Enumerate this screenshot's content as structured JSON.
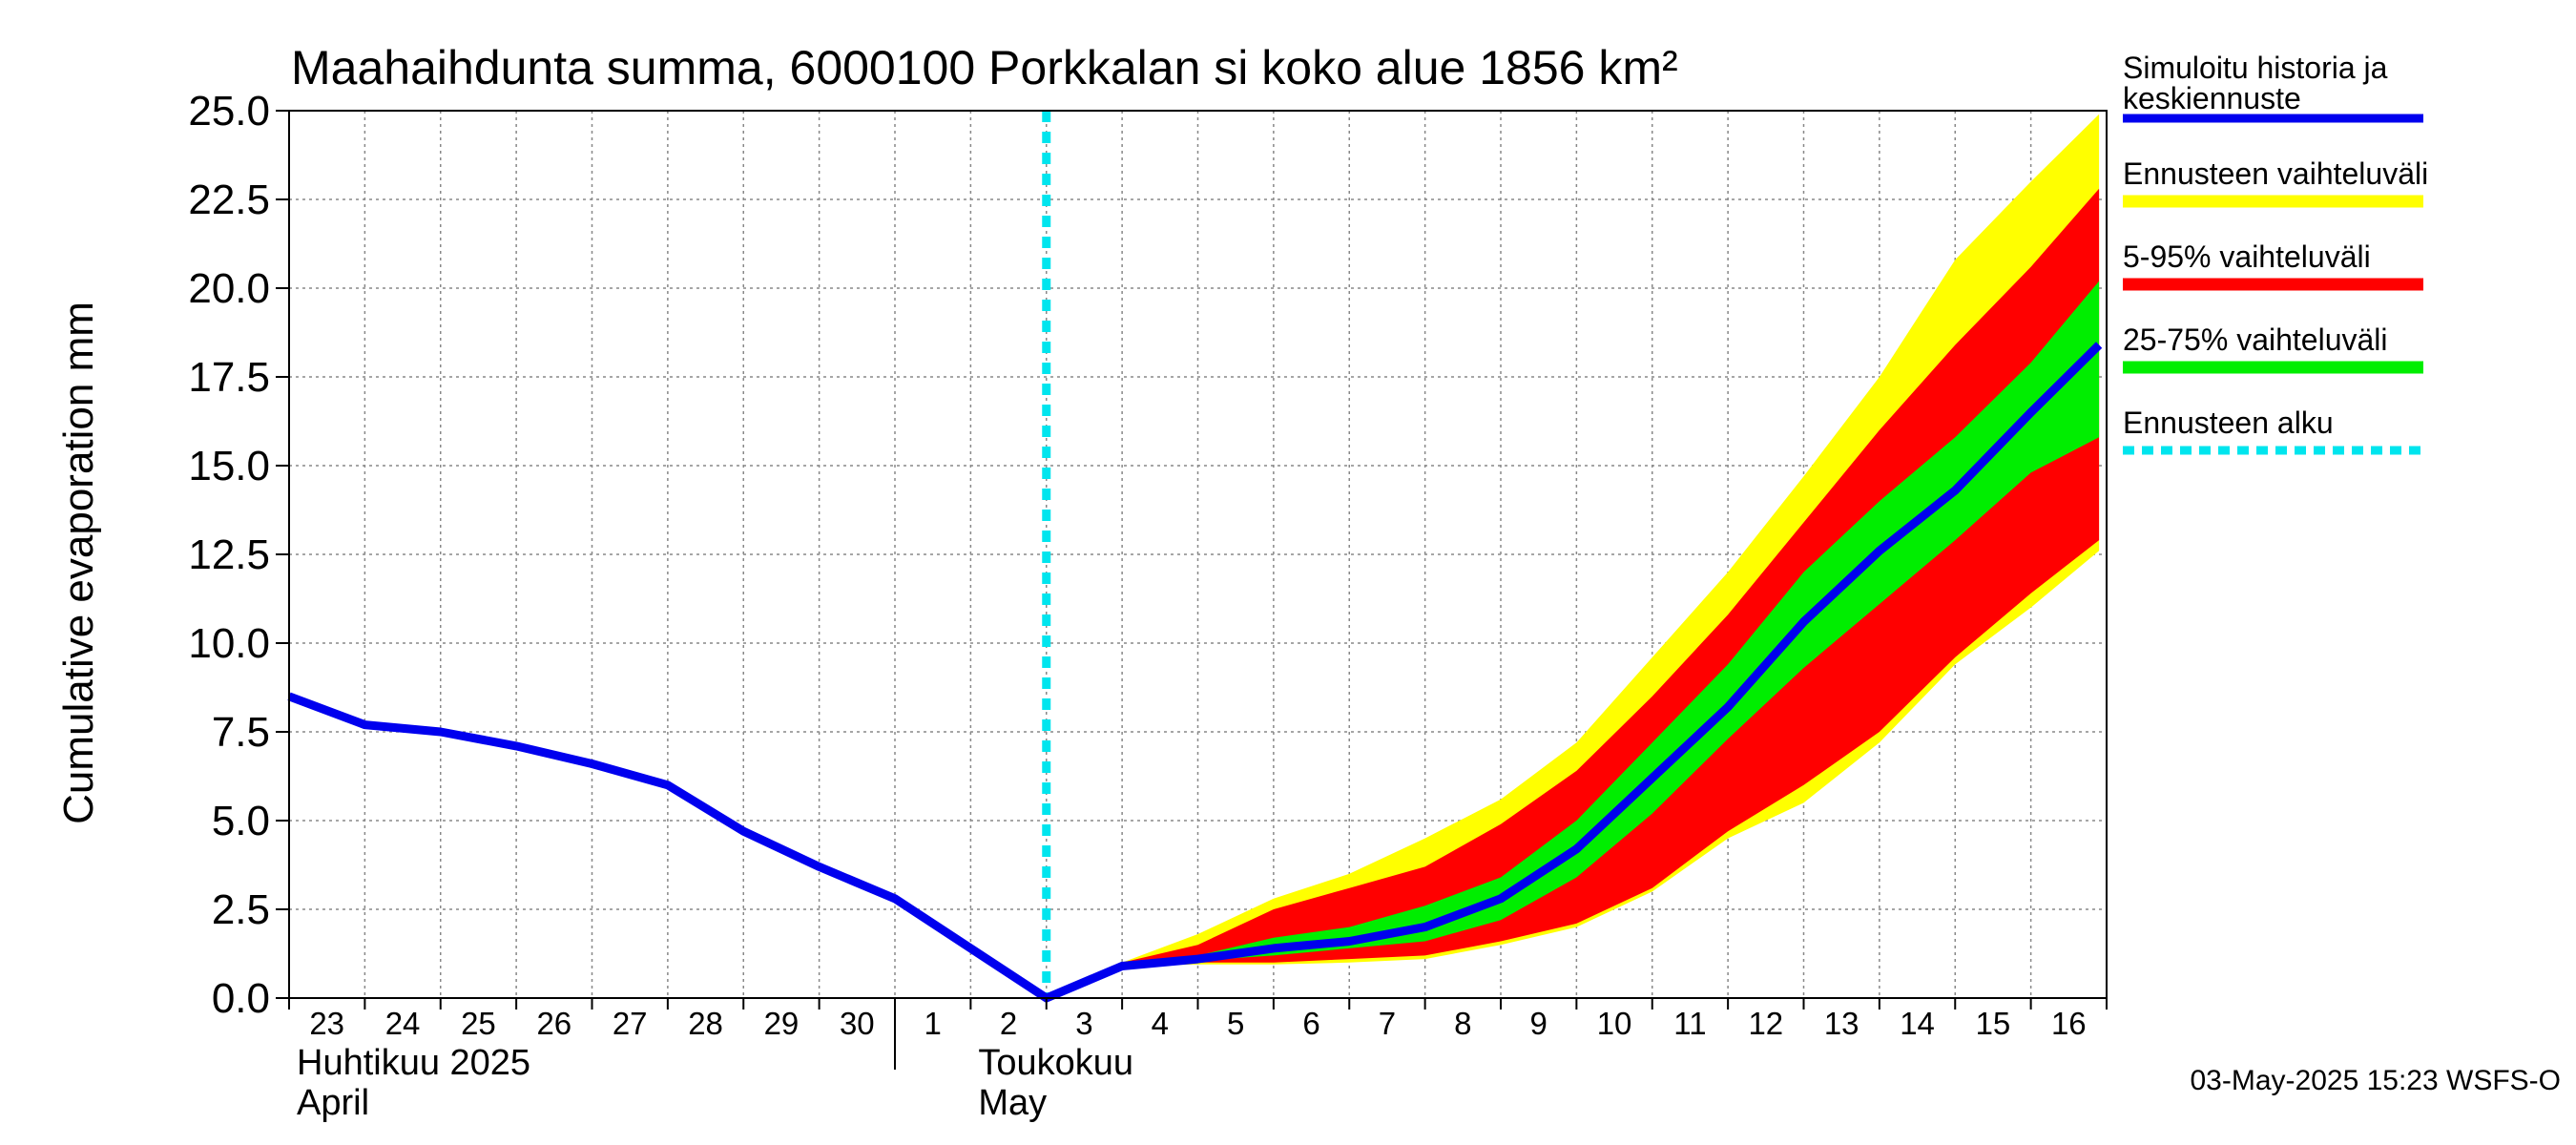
{
  "chart_data": {
    "type": "area",
    "title": "Maahaihdunta summa, 6000100 Porkkalan si koko alue 1856 km²",
    "ylabel": "Cumulative evaporation   mm",
    "xlabel": "",
    "ylim": [
      0,
      25
    ],
    "yticks": [
      "0.0",
      "2.5",
      "5.0",
      "7.5",
      "10.0",
      "12.5",
      "15.0",
      "17.5",
      "20.0",
      "22.5",
      "25.0"
    ],
    "x_start_day": "Apr 23",
    "x_day_count": 24,
    "x_tick_labels": [
      "23",
      "24",
      "25",
      "26",
      "27",
      "28",
      "29",
      "30",
      "1",
      "2",
      "3",
      "4",
      "5",
      "6",
      "7",
      "8",
      "9",
      "10",
      "11",
      "12",
      "13",
      "14",
      "15",
      "16"
    ],
    "month_labels": [
      {
        "line1": "Huhtikuu  2025",
        "line2": "April",
        "day_index": 0
      },
      {
        "line1": "Toukokuu",
        "line2": "May",
        "day_index": 9
      }
    ],
    "month_divider_day_index": 8,
    "forecast_start_x": 10.0,
    "history": {
      "name": "Simuloitu historia ja keskiennuste",
      "x": [
        0,
        1,
        2,
        3,
        4,
        5,
        6,
        7,
        8,
        9,
        10
      ],
      "y": [
        8.5,
        7.7,
        7.5,
        7.1,
        6.6,
        6.0,
        4.7,
        3.7,
        2.8,
        1.4,
        0.0
      ]
    },
    "forecast": {
      "x": [
        11,
        12,
        13,
        14,
        15,
        16,
        17,
        18,
        19,
        20,
        21,
        22,
        23,
        23.9
      ],
      "median": [
        0.9,
        1.1,
        1.4,
        1.6,
        2.0,
        2.8,
        4.2,
        6.2,
        8.2,
        10.6,
        12.6,
        14.3,
        16.5,
        18.4
      ],
      "full_min": [
        0.9,
        0.95,
        0.95,
        1.0,
        1.1,
        1.5,
        2.0,
        3.0,
        4.5,
        5.5,
        7.2,
        9.4,
        11.0,
        12.6
      ],
      "full_max": [
        1.0,
        1.8,
        2.8,
        3.5,
        4.5,
        5.6,
        7.2,
        9.6,
        12.0,
        14.7,
        17.5,
        20.8,
        23.0,
        24.9
      ],
      "p5": [
        0.9,
        1.0,
        1.0,
        1.1,
        1.2,
        1.6,
        2.1,
        3.1,
        4.7,
        6.0,
        7.5,
        9.6,
        11.4,
        12.9
      ],
      "p95": [
        1.0,
        1.5,
        2.5,
        3.1,
        3.7,
        4.9,
        6.4,
        8.5,
        10.8,
        13.4,
        16.0,
        18.4,
        20.6,
        22.8
      ],
      "p25": [
        0.9,
        1.05,
        1.2,
        1.4,
        1.6,
        2.2,
        3.4,
        5.2,
        7.3,
        9.3,
        11.1,
        12.9,
        14.8,
        15.8
      ],
      "p75": [
        0.95,
        1.2,
        1.7,
        2.0,
        2.6,
        3.4,
        5.0,
        7.2,
        9.4,
        12.0,
        14.0,
        15.8,
        17.9,
        20.2
      ]
    },
    "legend": [
      {
        "label": "Simuloitu historia ja keskiennuste",
        "color": "#0000ee",
        "style": "solid"
      },
      {
        "label": "Ennusteen vaihteluväli",
        "color": "#ffff00",
        "style": "band"
      },
      {
        "label": "5-95% vaihteluväli",
        "color": "#ff0000",
        "style": "band"
      },
      {
        "label": "25-75% vaihteluväli",
        "color": "#00ee00",
        "style": "band"
      },
      {
        "label": "Ennusteen alku",
        "color": "#00e5ee",
        "style": "dashed"
      }
    ],
    "legend_position": "right",
    "grid": true
  },
  "timestamp": "03-May-2025 15:23 WSFS-O"
}
